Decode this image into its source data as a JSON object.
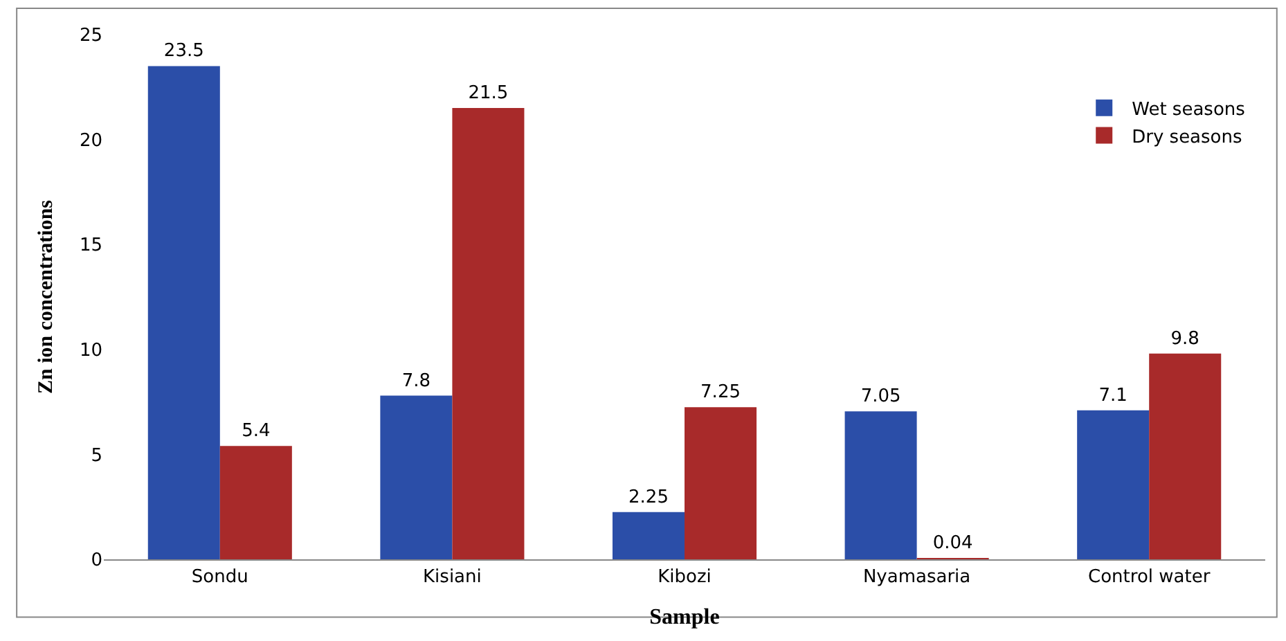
{
  "chart_data": {
    "type": "bar",
    "xlabel": "Sample",
    "ylabel": "Zn ion concentrations",
    "categories": [
      "Sondu",
      "Kisiani",
      "Kibozi",
      "Nyamasaria",
      "Control water"
    ],
    "series": [
      {
        "name": "Wet seasons",
        "color": "#2b4ea8",
        "values": [
          23.5,
          7.8,
          2.25,
          7.05,
          7.1
        ]
      },
      {
        "name": "Dry seasons",
        "color": "#a82a2a",
        "values": [
          5.4,
          21.5,
          7.25,
          0.04,
          9.8
        ]
      }
    ],
    "ylim": [
      0,
      25
    ],
    "yticks": [
      0,
      5,
      10,
      15,
      20,
      25
    ],
    "legend": "top right",
    "data_labels": true
  }
}
